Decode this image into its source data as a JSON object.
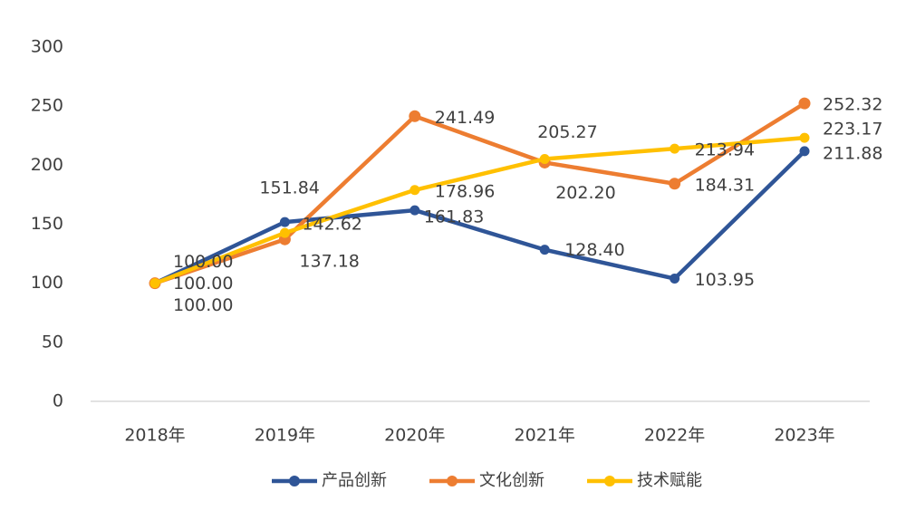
{
  "chart_data": {
    "type": "line",
    "title": "",
    "xlabel": "",
    "ylabel": "",
    "ylim": [
      0,
      300
    ],
    "yticks": [
      "0",
      "50",
      "100",
      "150",
      "200",
      "250",
      "300"
    ],
    "categories": [
      "2018年",
      "2019年",
      "2020年",
      "2021年",
      "2022年",
      "2023年"
    ],
    "grid": false,
    "legend_position": "bottom",
    "series": [
      {
        "name": "产品创新",
        "color": "#2F5597",
        "values": [
          100.0,
          151.84,
          161.83,
          128.4,
          103.95,
          211.88
        ],
        "labels": [
          "100.00",
          "151.84",
          "161.83",
          "128.40",
          "103.95",
          "211.88"
        ]
      },
      {
        "name": "文化创新",
        "color": "#ED7D31",
        "values": [
          100.0,
          137.18,
          241.49,
          202.2,
          184.31,
          252.32
        ],
        "labels": [
          "100.00",
          "137.18",
          "241.49",
          "202.20",
          "184.31",
          "252.32"
        ]
      },
      {
        "name": "技术赋能",
        "color": "#FFC000",
        "values": [
          100.0,
          142.62,
          178.96,
          205.27,
          213.94,
          223.17
        ],
        "labels": [
          "100.00",
          "142.62",
          "178.96",
          "205.27",
          "213.94",
          "223.17"
        ]
      }
    ]
  }
}
